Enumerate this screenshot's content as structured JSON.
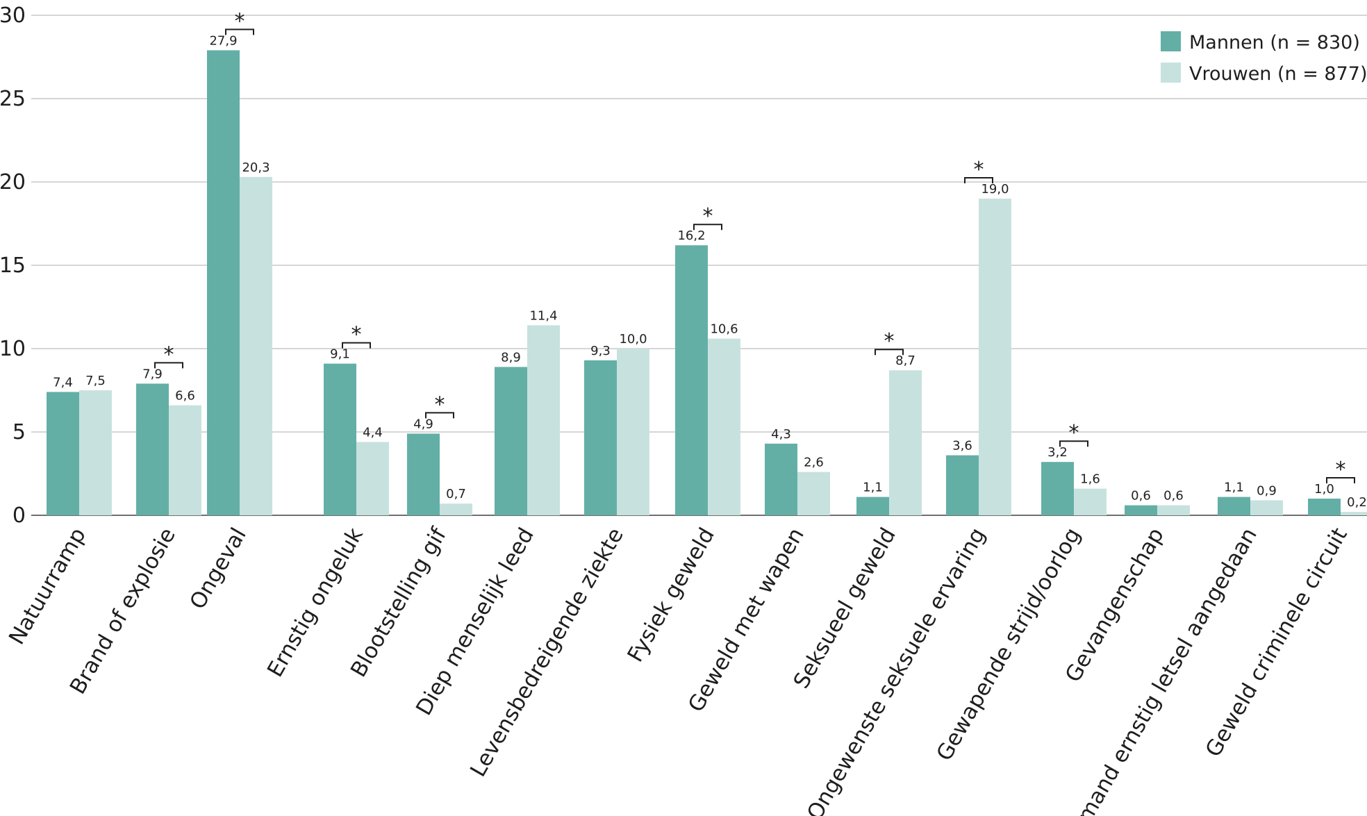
{
  "chart_data": {
    "type": "bar",
    "ylim": [
      0,
      30
    ],
    "yticks": [
      "0",
      "5",
      "10",
      "15",
      "20",
      "25",
      "30"
    ],
    "grid": true,
    "legend_position": "top-right",
    "categories": [
      "Natuurramp",
      "Brand of explosie",
      "Ongeval",
      "Ernstig ongeluk",
      "Blootstelling gif",
      "Diep menselijk leed",
      "Levensbedreigende ziekte",
      "Fysiek geweld",
      "Geweld met wapen",
      "Seksueel geweld",
      "Ongewenste seksuele ervaring",
      "Gewapende strijd/oorlog",
      "Gevangenschap",
      "Iemand ernstig letsel aangedaan",
      "Geweld criminele circuit"
    ],
    "series": [
      {
        "name": "Mannen (n = 830)",
        "color": "#63afa6",
        "values": [
          7.4,
          7.9,
          27.9,
          9.1,
          4.9,
          8.9,
          9.3,
          16.2,
          4.3,
          1.1,
          3.6,
          3.2,
          0.6,
          1.1,
          1.0
        ],
        "labels": [
          "7,4",
          "7,9",
          "27,9",
          "9,1",
          "4,9",
          "8,9",
          "9,3",
          "16,2",
          "4,3",
          "1,1",
          "3,6",
          "3,2",
          "0,6",
          "1,1",
          "1,0"
        ]
      },
      {
        "name": "Vrouwen (n = 877)",
        "color": "#c7e2de",
        "values": [
          7.5,
          6.6,
          20.3,
          4.4,
          0.7,
          11.4,
          10.0,
          10.6,
          2.6,
          8.7,
          19.0,
          1.6,
          0.6,
          0.9,
          0.2
        ],
        "labels": [
          "7,5",
          "6,6",
          "20,3",
          "4,4",
          "0,7",
          "11,4",
          "10,0",
          "10,6",
          "2,6",
          "8,7",
          "19,0",
          "1,6",
          "0,6",
          "0,9",
          "0,2"
        ]
      }
    ],
    "significance_marker": "*",
    "significant": [
      false,
      true,
      true,
      true,
      true,
      false,
      false,
      true,
      false,
      true,
      true,
      true,
      false,
      false,
      true
    ]
  }
}
